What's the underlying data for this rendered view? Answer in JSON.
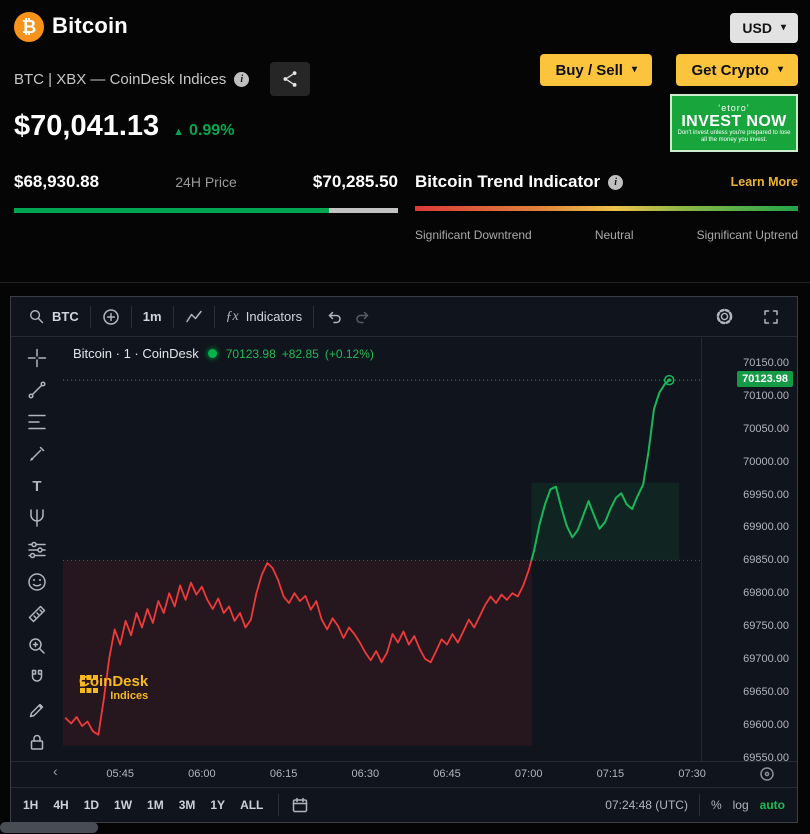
{
  "header": {
    "logo_symbol": "₿",
    "title": "Bitcoin",
    "currency": {
      "label": "USD"
    },
    "subtitle": "BTC | XBX — CoinDesk Indices",
    "buttons": {
      "buy_sell": "Buy / Sell",
      "get_crypto": "Get Crypto"
    },
    "ad": {
      "brand": "‘etoro’",
      "headline": "INVEST NOW",
      "disclaimer": "Don't invest unless you're prepared to lose all the money you invest."
    },
    "price": {
      "value": "$70,041.13",
      "change": "0.99%"
    },
    "range24h": {
      "low": "$68,930.88",
      "label": "24H Price",
      "high": "$70,285.50",
      "fill_pct": 82
    },
    "trend": {
      "title": "Bitcoin Trend Indicator",
      "learn_more": "Learn More",
      "scale_labels": [
        "Significant Downtrend",
        "Neutral",
        "Significant Uptrend"
      ]
    }
  },
  "chart": {
    "toolbar": {
      "symbol": "BTC",
      "interval": "1m",
      "indicators": "Indicators"
    },
    "legend": {
      "title": "Bitcoin · 1 · CoinDesk",
      "price": "70123.98",
      "change_abs": "+82.85",
      "change_pct": "(+0.12%)"
    },
    "watermark": {
      "line1": "CoinDesk",
      "line2": "Indices"
    },
    "price_axis_badge": "70123.98",
    "range_buttons": [
      "1H",
      "4H",
      "1D",
      "1W",
      "1M",
      "3M",
      "1Y",
      "ALL"
    ],
    "footer": {
      "clock": "07:24:48 (UTC)",
      "percent_label": "%",
      "log_label": "log",
      "auto_label": "auto"
    }
  },
  "icons": {
    "fx": "ƒx",
    "caret_down": "▾",
    "triangle_up": "▲",
    "chevron_left": "‹",
    "info": "i"
  },
  "colors": {
    "accent_yellow": "#fcc33c",
    "green": "#00a650",
    "learn_more": "#f0b232",
    "chart_up": "#18b85a",
    "chart_down": "#ef3a3a",
    "badge_bg": "#159a46"
  },
  "chart_data": {
    "type": "line",
    "series_name": "BTC / USD — CoinDesk XBX, 1 minute",
    "x_unit": "minutes since 05:40 UTC",
    "x": [
      -5,
      -4,
      -3,
      -2,
      -1,
      0,
      1,
      2,
      3,
      4,
      5,
      6,
      7,
      8,
      9,
      10,
      11,
      12,
      13,
      14,
      15,
      16,
      17,
      18,
      19,
      20,
      21,
      22,
      23,
      24,
      25,
      26,
      27,
      28,
      29,
      30,
      31,
      32,
      33,
      34,
      35,
      36,
      37,
      38,
      39,
      40,
      41,
      42,
      43,
      44,
      45,
      46,
      47,
      48,
      49,
      50,
      51,
      52,
      53,
      54,
      55,
      56,
      57,
      58,
      59,
      60,
      61,
      62,
      63,
      64,
      65,
      66,
      67,
      68,
      69,
      70,
      71,
      72,
      73,
      74,
      75,
      76,
      77,
      78,
      79,
      80,
      81,
      82,
      83,
      84,
      85,
      86,
      87,
      88,
      89,
      90,
      91,
      92,
      93,
      94,
      95,
      96,
      97,
      98,
      99,
      100,
      101,
      102,
      103,
      104,
      105,
      105.8
    ],
    "prices": [
      69610,
      69602,
      69612,
      69598,
      69605,
      69590,
      69585,
      69640,
      69702,
      69745,
      69722,
      69758,
      69736,
      69770,
      69748,
      69776,
      69755,
      69788,
      69770,
      69800,
      69780,
      69812,
      69790,
      69816,
      69798,
      69810,
      69790,
      69776,
      69792,
      69770,
      69780,
      69758,
      69770,
      69748,
      69760,
      69800,
      69828,
      69846,
      69838,
      69820,
      69795,
      69785,
      69800,
      69788,
      69796,
      69775,
      69788,
      69760,
      69745,
      69762,
      69750,
      69732,
      69748,
      69738,
      69725,
      69710,
      69698,
      69712,
      69695,
      69710,
      69738,
      69725,
      69742,
      69722,
      69735,
      69715,
      69700,
      69695,
      69712,
      69730,
      69722,
      69738,
      69725,
      69742,
      69760,
      69748,
      69765,
      69782,
      69795,
      69785,
      69798,
      69790,
      69800,
      69795,
      69812,
      69835,
      69865,
      69905,
      69935,
      69958,
      69962,
      69930,
      69902,
      69885,
      69896,
      69918,
      69940,
      69918,
      69898,
      69908,
      69928,
      69945,
      69952,
      69935,
      69928,
      69948,
      69965,
      70015,
      70080,
      70105,
      70118,
      70123.98
    ],
    "threshold": 69850,
    "last_price": 70123.98,
    "x_domain": [
      -5.5,
      112
    ],
    "y_domain": [
      69545,
      70188
    ],
    "y_ticks": [
      70150,
      70100,
      70050,
      70000,
      69950,
      69900,
      69850,
      69800,
      69750,
      69700,
      69650,
      69600,
      69550
    ],
    "x_ticks": [
      {
        "t": 5,
        "label": "05:45"
      },
      {
        "t": 20,
        "label": "06:00"
      },
      {
        "t": 35,
        "label": "06:15"
      },
      {
        "t": 50,
        "label": "06:30"
      },
      {
        "t": 65,
        "label": "06:45"
      },
      {
        "t": 80,
        "label": "07:00"
      },
      {
        "t": 95,
        "label": "07:15"
      },
      {
        "t": 110,
        "label": "07:30"
      }
    ],
    "grid": "off",
    "legend_position": "top-left",
    "colors": {
      "up": "#18b85a",
      "down": "#ef3a3a"
    }
  }
}
